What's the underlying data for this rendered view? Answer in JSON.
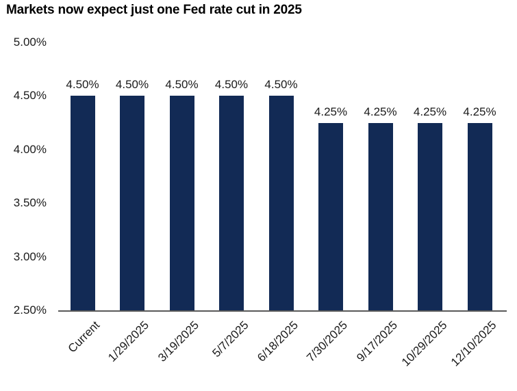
{
  "chart_data": {
    "type": "bar",
    "title": "Markets now expect just one Fed rate cut in 2025",
    "categories": [
      "Current",
      "1/29/2025",
      "3/19/2025",
      "5/7/2025",
      "6/18/2025",
      "7/30/2025",
      "9/17/2025",
      "10/29/2025",
      "12/10/2025"
    ],
    "values": [
      4.5,
      4.5,
      4.5,
      4.5,
      4.5,
      4.25,
      4.25,
      4.25,
      4.25
    ],
    "data_labels": [
      "4.50%",
      "4.50%",
      "4.50%",
      "4.50%",
      "4.50%",
      "4.25%",
      "4.25%",
      "4.25%",
      "4.25%"
    ],
    "y_ticks": [
      {
        "label": "5.00%",
        "value": 5.0
      },
      {
        "label": "4.50%",
        "value": 4.5
      },
      {
        "label": "4.00%",
        "value": 4.0
      },
      {
        "label": "3.50%",
        "value": 3.5
      },
      {
        "label": "3.00%",
        "value": 3.0
      },
      {
        "label": "2.50%",
        "value": 2.5
      }
    ],
    "ylim": [
      2.5,
      5.0
    ],
    "xlabel": "",
    "ylabel": "",
    "grid": false,
    "legend": false,
    "bar_color": "#122A55",
    "axis_line_color": "#595959",
    "text_color": "#1A1A1A",
    "title_color": "#000000",
    "background_color": "#FFFFFF"
  }
}
